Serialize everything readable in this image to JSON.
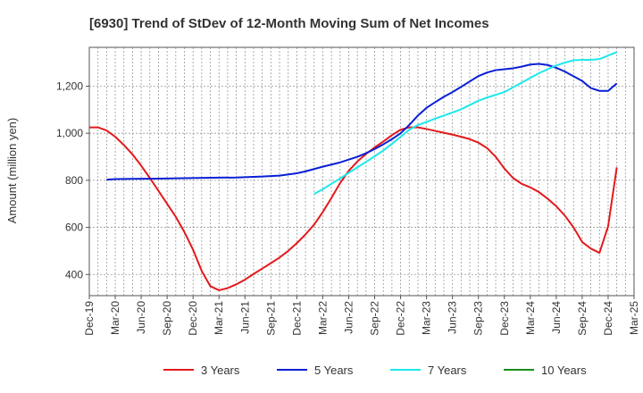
{
  "chart_data": {
    "type": "line",
    "title": "[6930]  Trend of StDev of 12-Month Moving Sum of Net Incomes",
    "ylabel": "Amount (million yen)",
    "xlabel": "",
    "ylim": [
      310,
      1365
    ],
    "xlim": [
      "2019-12",
      "2025-03"
    ],
    "y_ticks": [
      400,
      600,
      800,
      1000,
      1200
    ],
    "y_tick_labels": [
      "400",
      "600",
      "800",
      "1,000",
      "1,200"
    ],
    "x_ticks": [
      "2019-12",
      "2020-03",
      "2020-06",
      "2020-09",
      "2020-12",
      "2021-03",
      "2021-06",
      "2021-09",
      "2021-12",
      "2022-03",
      "2022-06",
      "2022-09",
      "2022-12",
      "2023-03",
      "2023-06",
      "2023-09",
      "2023-12",
      "2024-03",
      "2024-06",
      "2024-09",
      "2024-12",
      "2025-03"
    ],
    "x_tick_labels": [
      "Dec-19",
      "Mar-20",
      "Jun-20",
      "Sep-20",
      "Dec-20",
      "Mar-21",
      "Jun-21",
      "Sep-21",
      "Dec-21",
      "Mar-22",
      "Jun-22",
      "Sep-22",
      "Dec-22",
      "Mar-23",
      "Jun-23",
      "Sep-23",
      "Dec-23",
      "Mar-24",
      "Jun-24",
      "Sep-24",
      "Dec-24",
      "Mar-25"
    ],
    "grid": true,
    "legend_position": "bottom",
    "series": [
      {
        "name": "3 Years",
        "color": "#e31a1c",
        "points": [
          [
            "2019-12",
            1025
          ],
          [
            "2020-01",
            1025
          ],
          [
            "2020-02",
            1012
          ],
          [
            "2020-03",
            985
          ],
          [
            "2020-04",
            950
          ],
          [
            "2020-05",
            910
          ],
          [
            "2020-06",
            862
          ],
          [
            "2020-07",
            810
          ],
          [
            "2020-08",
            755
          ],
          [
            "2020-09",
            700
          ],
          [
            "2020-10",
            645
          ],
          [
            "2020-11",
            580
          ],
          [
            "2020-12",
            505
          ],
          [
            "2021-01",
            415
          ],
          [
            "2021-02",
            350
          ],
          [
            "2021-03",
            333
          ],
          [
            "2021-04",
            342
          ],
          [
            "2021-05",
            358
          ],
          [
            "2021-06",
            378
          ],
          [
            "2021-07",
            402
          ],
          [
            "2021-08",
            425
          ],
          [
            "2021-09",
            448
          ],
          [
            "2021-10",
            472
          ],
          [
            "2021-11",
            500
          ],
          [
            "2021-12",
            533
          ],
          [
            "2022-01",
            570
          ],
          [
            "2022-02",
            612
          ],
          [
            "2022-03",
            665
          ],
          [
            "2022-04",
            725
          ],
          [
            "2022-05",
            788
          ],
          [
            "2022-06",
            840
          ],
          [
            "2022-07",
            880
          ],
          [
            "2022-08",
            912
          ],
          [
            "2022-09",
            940
          ],
          [
            "2022-10",
            965
          ],
          [
            "2022-11",
            992
          ],
          [
            "2022-12",
            1015
          ],
          [
            "2023-01",
            1025
          ],
          [
            "2023-02",
            1025
          ],
          [
            "2023-03",
            1018
          ],
          [
            "2023-04",
            1010
          ],
          [
            "2023-05",
            1002
          ],
          [
            "2023-06",
            994
          ],
          [
            "2023-07",
            985
          ],
          [
            "2023-08",
            975
          ],
          [
            "2023-09",
            960
          ],
          [
            "2023-10",
            937
          ],
          [
            "2023-11",
            900
          ],
          [
            "2023-12",
            850
          ],
          [
            "2024-01",
            810
          ],
          [
            "2024-02",
            785
          ],
          [
            "2024-03",
            770
          ],
          [
            "2024-04",
            750
          ],
          [
            "2024-05",
            722
          ],
          [
            "2024-06",
            690
          ],
          [
            "2024-07",
            650
          ],
          [
            "2024-08",
            600
          ],
          [
            "2024-09",
            538
          ],
          [
            "2024-10",
            510
          ],
          [
            "2024-11",
            492
          ],
          [
            "2024-12",
            605
          ],
          [
            "2025-01",
            855
          ]
        ]
      },
      {
        "name": "5 Years",
        "color": "#0a1fd6",
        "points": [
          [
            "2020-02",
            803
          ],
          [
            "2020-03",
            805
          ],
          [
            "2020-05",
            806
          ],
          [
            "2020-08",
            807
          ],
          [
            "2020-11",
            809
          ],
          [
            "2021-02",
            811
          ],
          [
            "2021-05",
            812
          ],
          [
            "2021-08",
            816
          ],
          [
            "2021-10",
            820
          ],
          [
            "2021-12",
            830
          ],
          [
            "2022-01",
            838
          ],
          [
            "2022-02",
            848
          ],
          [
            "2022-03",
            858
          ],
          [
            "2022-04",
            867
          ],
          [
            "2022-05",
            876
          ],
          [
            "2022-06",
            888
          ],
          [
            "2022-07",
            900
          ],
          [
            "2022-08",
            915
          ],
          [
            "2022-09",
            933
          ],
          [
            "2022-10",
            953
          ],
          [
            "2022-11",
            975
          ],
          [
            "2022-12",
            1000
          ],
          [
            "2023-01",
            1035
          ],
          [
            "2023-02",
            1075
          ],
          [
            "2023-03",
            1108
          ],
          [
            "2023-04",
            1132
          ],
          [
            "2023-05",
            1155
          ],
          [
            "2023-06",
            1175
          ],
          [
            "2023-07",
            1197
          ],
          [
            "2023-08",
            1220
          ],
          [
            "2023-09",
            1243
          ],
          [
            "2023-10",
            1258
          ],
          [
            "2023-11",
            1268
          ],
          [
            "2023-12",
            1272
          ],
          [
            "2024-01",
            1276
          ],
          [
            "2024-02",
            1283
          ],
          [
            "2024-03",
            1292
          ],
          [
            "2024-04",
            1295
          ],
          [
            "2024-05",
            1290
          ],
          [
            "2024-06",
            1278
          ],
          [
            "2024-07",
            1262
          ],
          [
            "2024-08",
            1242
          ],
          [
            "2024-09",
            1222
          ],
          [
            "2024-10",
            1192
          ],
          [
            "2024-11",
            1180
          ],
          [
            "2024-12",
            1180
          ],
          [
            "2025-01",
            1212
          ]
        ]
      },
      {
        "name": "7 Years",
        "color": "#1ee8ec",
        "points": [
          [
            "2022-02",
            742
          ],
          [
            "2022-03",
            762
          ],
          [
            "2022-04",
            785
          ],
          [
            "2022-05",
            808
          ],
          [
            "2022-06",
            832
          ],
          [
            "2022-07",
            855
          ],
          [
            "2022-08",
            878
          ],
          [
            "2022-09",
            902
          ],
          [
            "2022-10",
            927
          ],
          [
            "2022-11",
            955
          ],
          [
            "2022-12",
            985
          ],
          [
            "2023-01",
            1015
          ],
          [
            "2023-02",
            1035
          ],
          [
            "2023-03",
            1048
          ],
          [
            "2023-04",
            1062
          ],
          [
            "2023-05",
            1075
          ],
          [
            "2023-06",
            1088
          ],
          [
            "2023-07",
            1102
          ],
          [
            "2023-08",
            1120
          ],
          [
            "2023-09",
            1138
          ],
          [
            "2023-10",
            1152
          ],
          [
            "2023-11",
            1163
          ],
          [
            "2023-12",
            1175
          ],
          [
            "2024-01",
            1195
          ],
          [
            "2024-02",
            1215
          ],
          [
            "2024-03",
            1235
          ],
          [
            "2024-04",
            1255
          ],
          [
            "2024-05",
            1272
          ],
          [
            "2024-06",
            1288
          ],
          [
            "2024-07",
            1300
          ],
          [
            "2024-08",
            1310
          ],
          [
            "2024-09",
            1312
          ],
          [
            "2024-10",
            1312
          ],
          [
            "2024-11",
            1315
          ],
          [
            "2024-12",
            1330
          ],
          [
            "2025-01",
            1345
          ]
        ]
      },
      {
        "name": "10 Years",
        "color": "#1a8c1a",
        "points": []
      }
    ]
  }
}
